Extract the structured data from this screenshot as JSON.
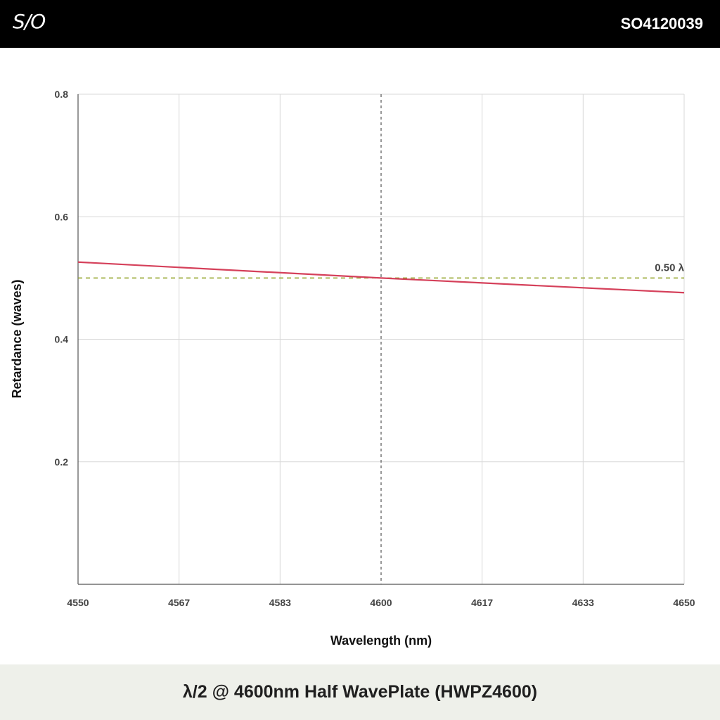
{
  "header": {
    "logo": "S/O",
    "part_number": "SO4120039"
  },
  "footer": {
    "title": "λ/2 @ 4600nm Half WavePlate (HWPZ4600)"
  },
  "colors": {
    "series": "#d5405a",
    "reference": "#8ea020",
    "center_line": "#555555",
    "grid": "#d8d8d8"
  },
  "chart_data": {
    "type": "line",
    "xlabel": "Wavelength (nm)",
    "ylabel": "Retardance (waves)",
    "xlim": [
      4550,
      4650
    ],
    "ylim": [
      0,
      0.8
    ],
    "x_ticks": [
      "4550",
      "4567",
      "4583",
      "4600",
      "4617",
      "4633",
      "4650"
    ],
    "y_ticks": [
      "0.2",
      "0.4",
      "0.6",
      "0.8"
    ],
    "grid": true,
    "series": [
      {
        "x": [
          4550,
          4600,
          4650
        ],
        "y": [
          0.526,
          0.5,
          0.476
        ]
      }
    ],
    "reference_line": {
      "y": 0.5,
      "label": "0.50 λ",
      "style": "dashed"
    },
    "center_marker": {
      "x": 4600,
      "style": "dashed"
    }
  }
}
